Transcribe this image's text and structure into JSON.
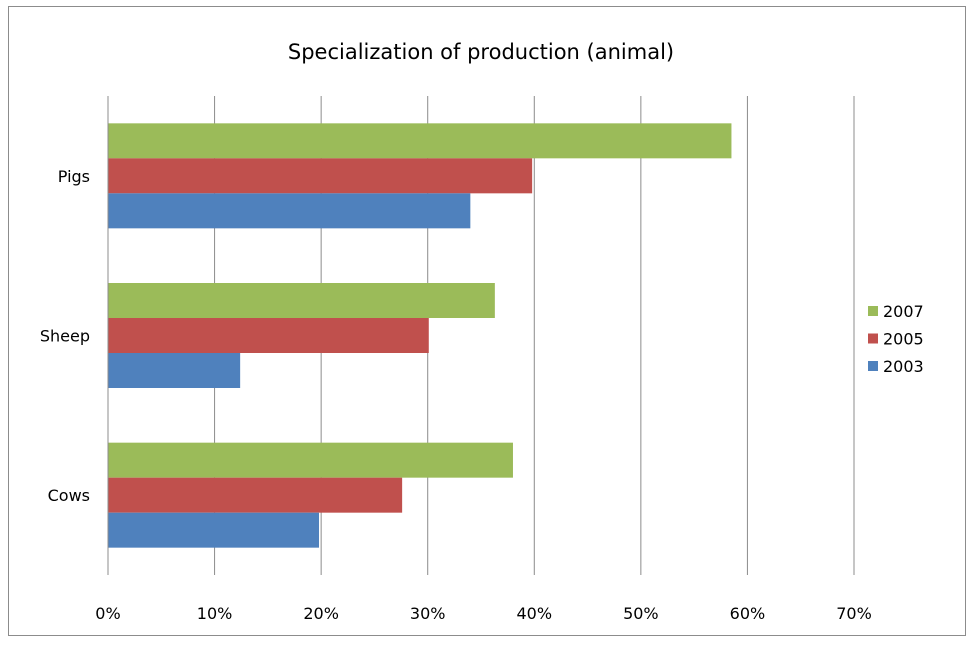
{
  "chart_data": {
    "type": "bar",
    "orientation": "horizontal",
    "title": "Specialization of production (animal)",
    "xlabel": "",
    "ylabel": "",
    "categories": [
      "Pigs",
      "Sheep",
      "Cows"
    ],
    "series": [
      {
        "name": "2007",
        "color": "#9bbb59",
        "values": [
          58.5,
          36.3,
          38.0
        ]
      },
      {
        "name": "2005",
        "color": "#c0504d",
        "values": [
          39.8,
          30.1,
          27.6
        ]
      },
      {
        "name": "2003",
        "color": "#4f81bd",
        "values": [
          34.0,
          12.4,
          19.8
        ]
      }
    ],
    "xlim": [
      0,
      70
    ],
    "x_ticks": [
      "0%",
      "10%",
      "20%",
      "30%",
      "40%",
      "50%",
      "60%",
      "70%"
    ],
    "grid": "vertical",
    "legend_position": "right"
  }
}
